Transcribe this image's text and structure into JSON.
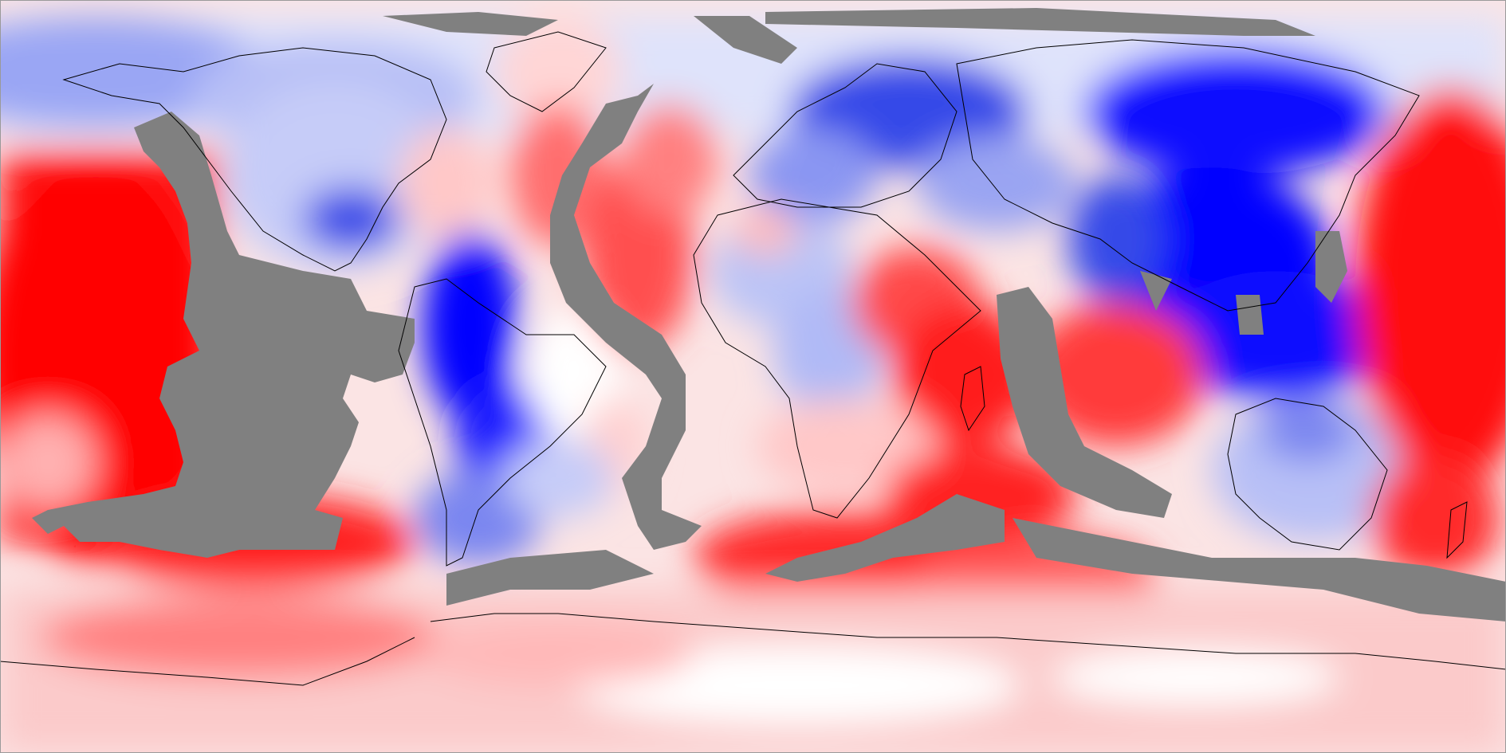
{
  "map": {
    "projection": "equirectangular",
    "palette": {
      "strong_positive": "#ff0000",
      "neutral": "#ffffff",
      "strong_negative": "#0000ff",
      "masked": "#808080",
      "coastline": "#000000",
      "frame": "#9a9a9a"
    },
    "legend": null
  }
}
